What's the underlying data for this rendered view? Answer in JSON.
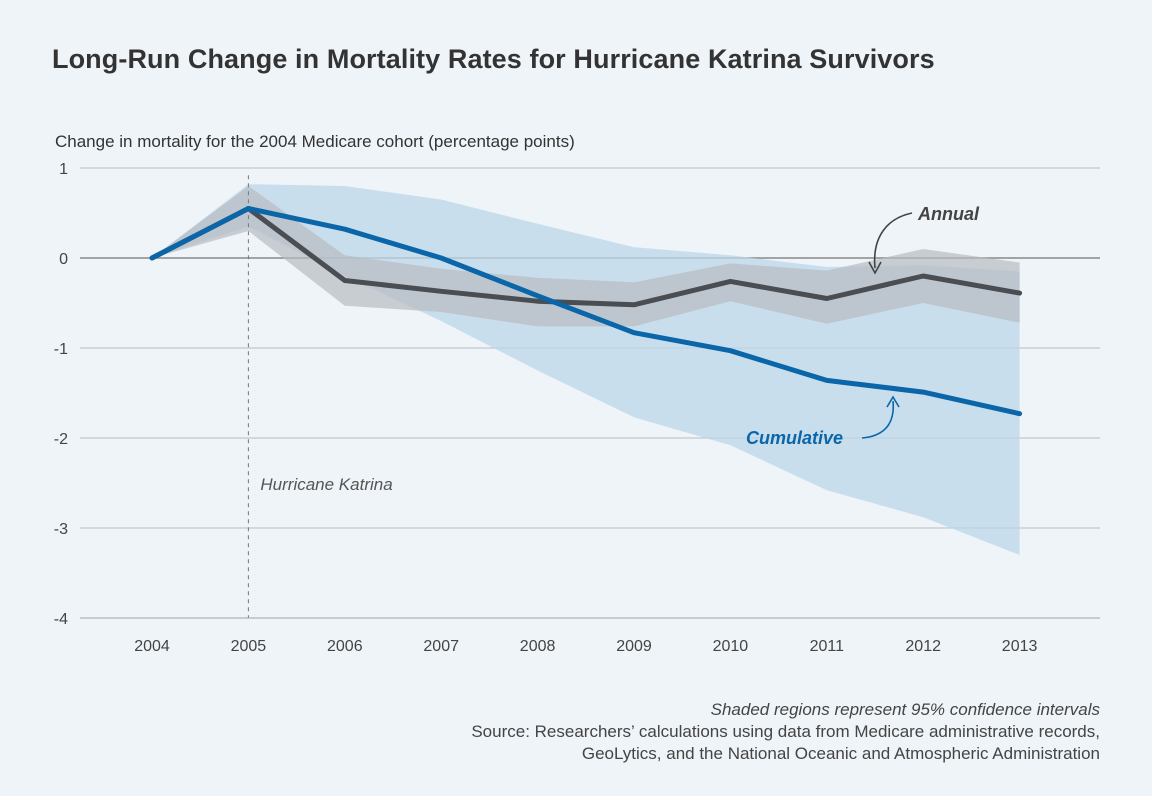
{
  "chart_data": {
    "type": "line",
    "title": "Long-Run Change in Mortality Rates for Hurricane Katrina Survivors",
    "ylabel": "Change in mortality for the 2004 Medicare cohort (percentage points)",
    "xlabel": "",
    "x": [
      2004,
      2005,
      2006,
      2007,
      2008,
      2009,
      2010,
      2011,
      2012,
      2013
    ],
    "ylim": [
      -4,
      1
    ],
    "yticks": [
      1,
      0,
      -1,
      -2,
      -3,
      -4
    ],
    "ytick_labels": [
      "1",
      "0",
      "-1",
      "-2",
      "-3",
      "-4"
    ],
    "grid": true,
    "series": [
      {
        "name": "Annual",
        "color": "#4a4d52",
        "band_color": "#b8bcc2",
        "values": [
          0,
          0.55,
          -0.25,
          -0.37,
          -0.48,
          -0.52,
          -0.26,
          -0.45,
          -0.2,
          -0.39
        ],
        "ci_lower": [
          0,
          0.3,
          -0.53,
          -0.6,
          -0.76,
          -0.76,
          -0.48,
          -0.73,
          -0.5,
          -0.72
        ],
        "ci_upper": [
          0,
          0.8,
          0.03,
          -0.12,
          -0.22,
          -0.27,
          -0.06,
          -0.14,
          0.1,
          -0.05
        ]
      },
      {
        "name": "Cumulative",
        "color": "#0a66a8",
        "band_color": "#bcd7ea",
        "values": [
          0,
          0.55,
          0.32,
          0.0,
          -0.42,
          -0.83,
          -1.03,
          -1.36,
          -1.49,
          -1.73
        ],
        "ci_lower": [
          0,
          0.35,
          -0.2,
          -0.7,
          -1.25,
          -1.77,
          -2.08,
          -2.58,
          -2.88,
          -3.3
        ],
        "ci_upper": [
          0,
          0.82,
          0.8,
          0.65,
          0.38,
          0.12,
          0.03,
          -0.1,
          -0.08,
          -0.15
        ]
      }
    ],
    "event_line": {
      "x": 2005,
      "label": "Hurricane Katrina"
    },
    "annotations": [
      {
        "text": "Annual",
        "target": "Annual"
      },
      {
        "text": "Cumulative",
        "target": "Cumulative"
      }
    ]
  },
  "footer": {
    "note": "Shaded regions represent 95% confidence intervals",
    "source_line1": "Source: Researchers’ calculations using data from Medicare administrative records,",
    "source_line2": "GeoLytics, and the National Oceanic and Atmospheric Administration"
  }
}
